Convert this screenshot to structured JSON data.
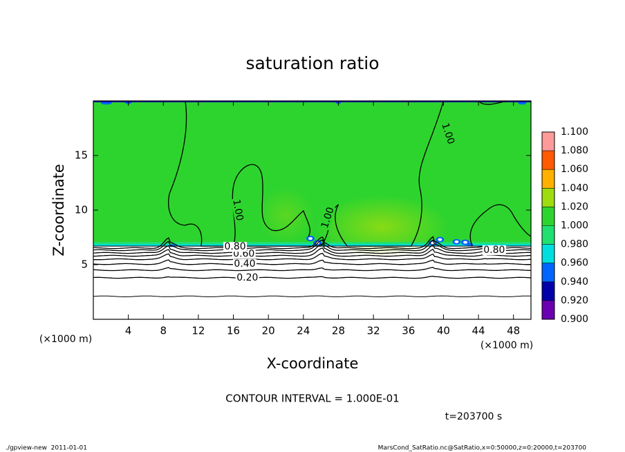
{
  "chart_data": {
    "type": "contour",
    "title": "saturation ratio",
    "xlabel": "X-coordinate",
    "ylabel": "Z-coordinate",
    "xlabel_unit": "(×1000 m)",
    "ylabel_unit": "(×1000 m)",
    "xlim": [
      0,
      50
    ],
    "ylim": [
      0,
      20
    ],
    "xticks": [
      4,
      8,
      12,
      16,
      20,
      24,
      28,
      32,
      36,
      40,
      44,
      48
    ],
    "yticks": [
      5,
      10,
      15
    ],
    "contour_levels": [
      0.1,
      {
        "value": 0.2,
        "label": "0.20"
      },
      0.3,
      {
        "value": 0.4,
        "label": "0.40"
      },
      0.5,
      {
        "value": 0.6,
        "label": "0.60"
      },
      0.7,
      {
        "value": 0.8,
        "label": "0.80"
      },
      0.9,
      {
        "value": 1,
        "label": "1.00"
      }
    ],
    "contour_interval": "CONTOUR INTERVAL = 1.000E-01",
    "time_label": "t=203700 s",
    "colorbar": {
      "ticks": [
        {
          "value": 0.9,
          "label": "0.900"
        },
        {
          "value": 0.92,
          "label": "0.920"
        },
        {
          "value": 0.94,
          "label": "0.940"
        },
        {
          "value": 0.96,
          "label": "0.960"
        },
        {
          "value": 0.98,
          "label": "0.980"
        },
        {
          "value": 1,
          "label": "1.000"
        },
        {
          "value": 1.02,
          "label": "1.020"
        },
        {
          "value": 1.04,
          "label": "1.040"
        },
        {
          "value": 1.06,
          "label": "1.060"
        },
        {
          "value": 1.08,
          "label": "1.080"
        },
        {
          "value": 1.1,
          "label": "1.100"
        }
      ],
      "colors": [
        "#6a00b0",
        "#0000a8",
        "#0064ff",
        "#00dede",
        "#20e070",
        "#2ed42e",
        "#9edc10",
        "#ffb000",
        "#ff5a00",
        "#ff9a9a"
      ]
    },
    "footer_left": "./gpview-new  2011-01-01",
    "footer_right": "MarsCond_SatRatio.nc@SatRatio,x=0:50000,z=0:20000,t=203700"
  }
}
